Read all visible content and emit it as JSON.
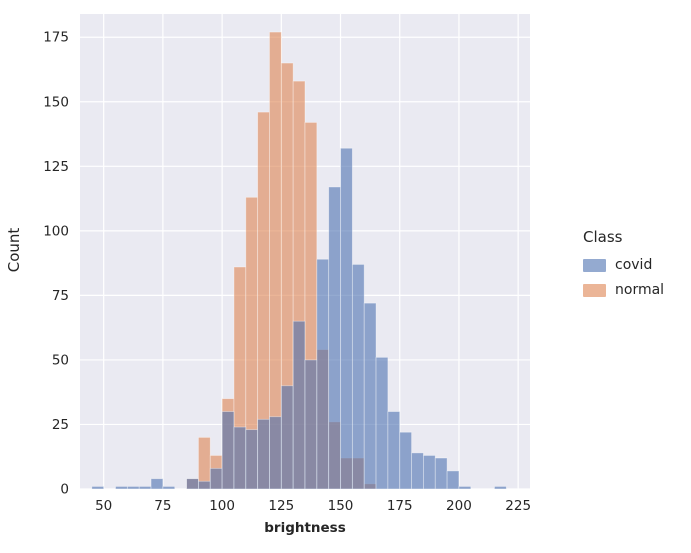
{
  "chart_data": {
    "type": "bar",
    "subtype": "histogram-overlaid",
    "title": "",
    "xlabel": "brightness",
    "ylabel": "Count",
    "xlim": [
      40,
      230
    ],
    "ylim": [
      0,
      184
    ],
    "x_ticks": [
      50,
      75,
      100,
      125,
      150,
      175,
      200,
      225
    ],
    "y_ticks": [
      0,
      25,
      50,
      75,
      100,
      125,
      150,
      175
    ],
    "grid": true,
    "plot_background": "#eaeaf2",
    "grid_color": "#ffffff",
    "bin_start": 45,
    "bin_width": 5,
    "legend": {
      "title": "Class",
      "position": "right"
    },
    "series": [
      {
        "name": "covid",
        "color": "#4C72B0",
        "fill_opacity": 0.6,
        "values": [
          1,
          0,
          1,
          1,
          1,
          4,
          1,
          0,
          4,
          3,
          8,
          30,
          24,
          23,
          27,
          28,
          40,
          65,
          50,
          89,
          117,
          132,
          87,
          72,
          51,
          30,
          22,
          14,
          13,
          12,
          7,
          1,
          0,
          0,
          1,
          0
        ]
      },
      {
        "name": "normal",
        "color": "#DD8452",
        "fill_opacity": 0.6,
        "values": [
          0,
          0,
          0,
          0,
          0,
          0,
          0,
          0,
          4,
          20,
          13,
          35,
          86,
          113,
          146,
          177,
          165,
          158,
          142,
          54,
          26,
          12,
          12,
          2,
          0,
          0,
          0,
          0,
          0,
          0,
          0,
          0,
          0,
          0,
          0,
          0
        ]
      }
    ]
  }
}
